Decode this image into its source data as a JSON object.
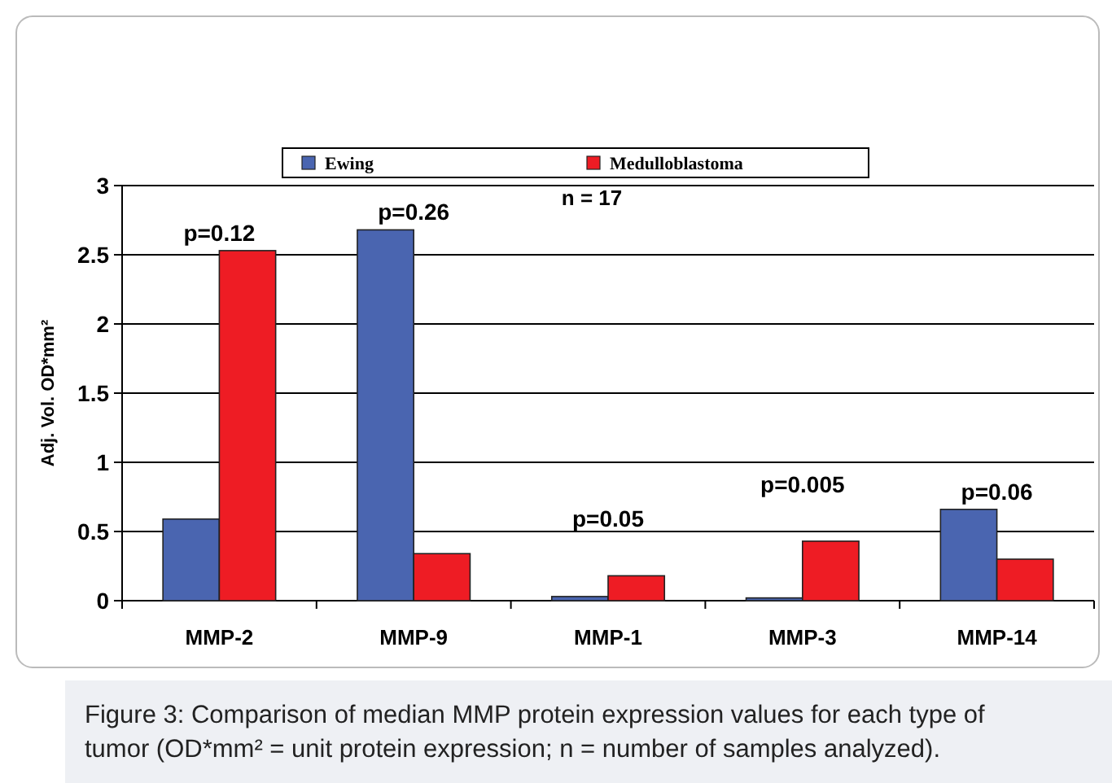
{
  "chart_data": {
    "type": "bar",
    "ylabel": "Adj. Vol. OD*mm²",
    "categories": [
      "MMP-2",
      "MMP-9",
      "MMP-1",
      "MMP-3",
      "MMP-14"
    ],
    "series": [
      {
        "name": "Ewing",
        "color": "#4a65b0",
        "values": [
          0.59,
          2.68,
          0.03,
          0.02,
          0.66
        ]
      },
      {
        "name": "Medulloblastoma",
        "color": "#ee1c24",
        "values": [
          2.53,
          0.34,
          0.18,
          0.43,
          0.3
        ]
      }
    ],
    "ylim": [
      0,
      3
    ],
    "yticks": [
      0,
      0.5,
      1,
      1.5,
      2,
      2.5,
      3
    ],
    "grid": "y",
    "legend": "top",
    "annotations": [
      "n = 17",
      "p=0.12",
      "p=0.26",
      "p=0.05",
      "p=0.005",
      "p=0.06",
      "Figure 3: Comparison of median MMP protein expression values for each type of tumor (OD*mm² = unit protein expression; n = number of samples analyzed)."
    ]
  }
}
